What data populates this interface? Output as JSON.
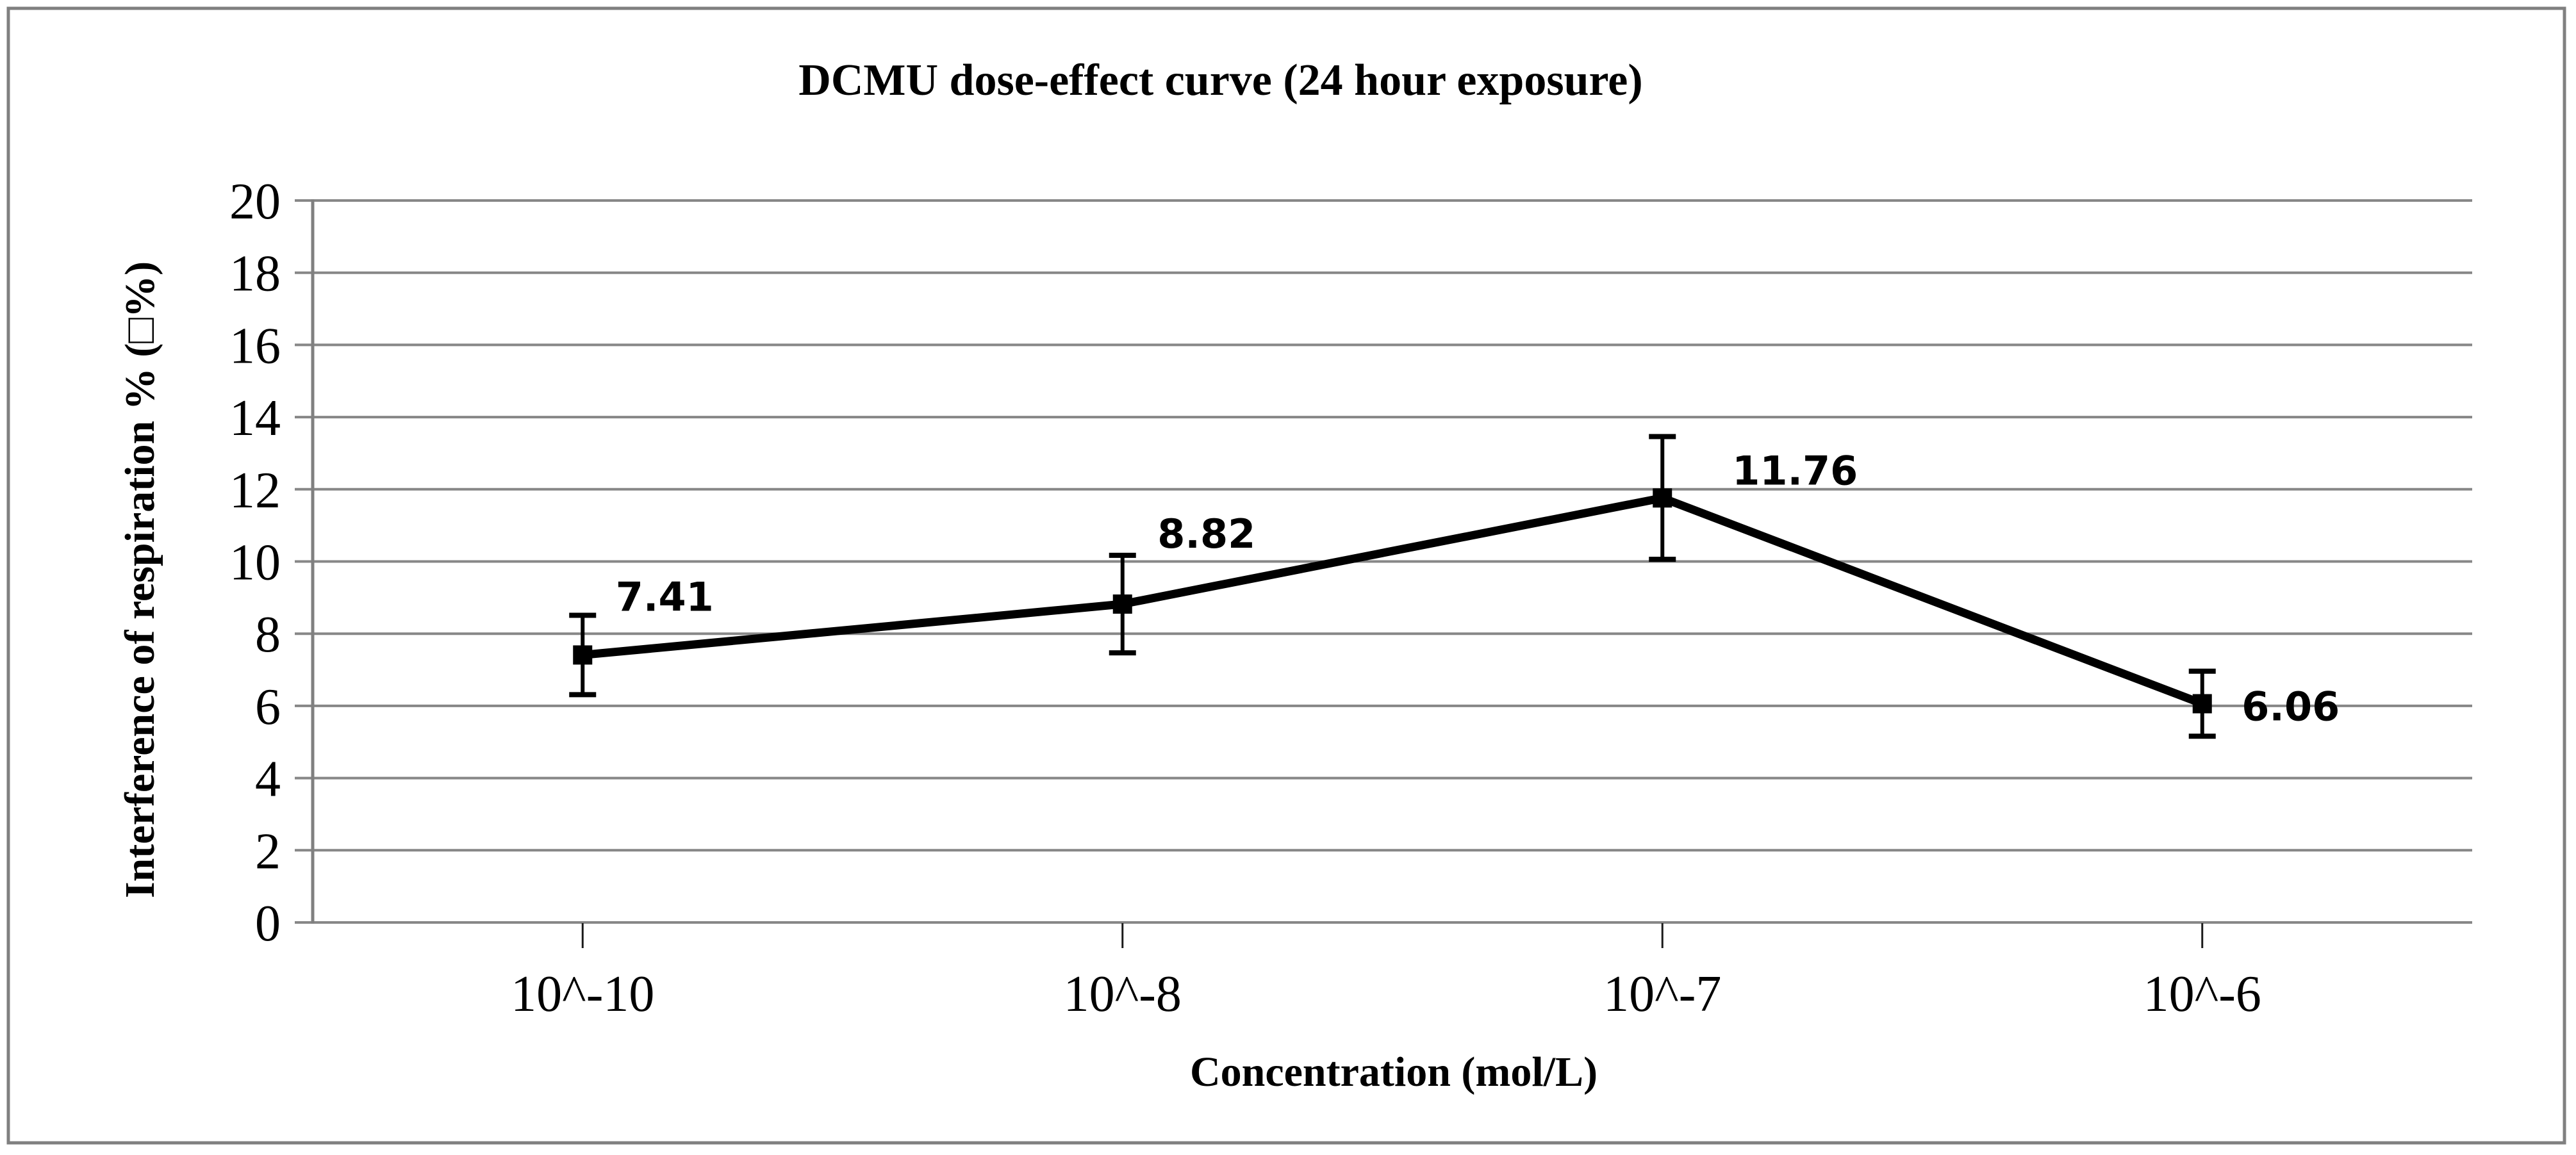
{
  "chart_data": {
    "type": "line",
    "title": "DCMU dose-effect curve (24 hour exposure)",
    "xlabel": "Concentration (mol/L)",
    "ylabel": "Interference of respiration % (□%)",
    "categories": [
      "10^-10",
      "10^-8",
      "10^-7",
      "10^-6"
    ],
    "series": [
      {
        "name": "Interference of respiration %",
        "values": [
          7.41,
          8.82,
          11.76,
          6.06
        ],
        "labels": [
          "7.41",
          "8.82",
          "11.76",
          "6.06"
        ],
        "error_bars": [
          1.1,
          1.35,
          1.7,
          0.9
        ]
      }
    ],
    "ylim": [
      0,
      20
    ],
    "yticks": [
      0,
      2,
      4,
      6,
      8,
      10,
      12,
      14,
      16,
      18,
      20
    ],
    "grid": true,
    "legend_position": "none",
    "marker": "square",
    "colors": {
      "line": "#000000",
      "marker": "#000000",
      "grid": "#878787",
      "axis": "#808080",
      "border": "#808080",
      "tick": "#1a1a1a",
      "text": "#000000",
      "background": "#ffffff"
    }
  }
}
